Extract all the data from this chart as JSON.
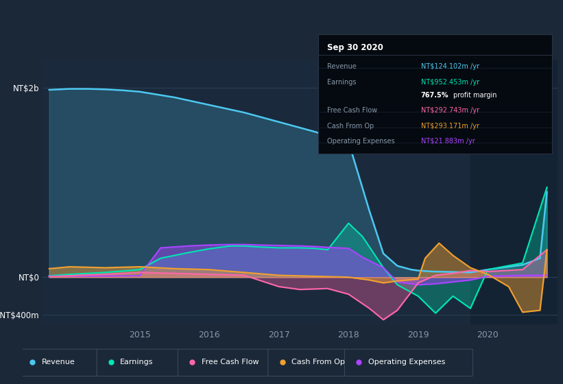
{
  "bg_color": "#1b2838",
  "plot_bg_color": "#1a2a3c",
  "grid_color": "#2a3f55",
  "text_color": "#8899aa",
  "ylim": [
    -500,
    2300
  ],
  "xlim": [
    2013.6,
    2021.0
  ],
  "ytick_labels": [
    "NT$2b",
    "NT$0",
    "-NT$400m"
  ],
  "ytick_vals": [
    2000,
    0,
    -400
  ],
  "xtick_vals": [
    2015,
    2016,
    2017,
    2018,
    2019,
    2020
  ],
  "legend_items": [
    {
      "label": "Revenue",
      "color": "#4dc8f0"
    },
    {
      "label": "Earnings",
      "color": "#00e5b4"
    },
    {
      "label": "Free Cash Flow",
      "color": "#ff66aa"
    },
    {
      "label": "Cash From Op",
      "color": "#f0a030"
    },
    {
      "label": "Operating Expenses",
      "color": "#aa44ff"
    }
  ],
  "rev_color": "#4dc8f0",
  "earn_color": "#00e5b4",
  "fcf_color": "#ff66aa",
  "cash_color": "#f0a030",
  "opex_color": "#aa44ff",
  "revenue_x": [
    2013.7,
    2014.0,
    2014.25,
    2014.5,
    2014.75,
    2015.0,
    2015.5,
    2016.0,
    2016.5,
    2017.0,
    2017.5,
    2018.0,
    2018.3,
    2018.5,
    2018.7,
    2018.9,
    2019.0,
    2019.2,
    2019.5,
    2019.75,
    2020.0,
    2020.5,
    2020.75,
    2020.85
  ],
  "revenue_y": [
    1980,
    1990,
    1990,
    1985,
    1975,
    1960,
    1900,
    1820,
    1740,
    1640,
    1540,
    1430,
    700,
    250,
    120,
    80,
    70,
    60,
    55,
    50,
    80,
    130,
    200,
    900
  ],
  "earnings_x": [
    2013.7,
    2014.0,
    2014.5,
    2015.0,
    2015.3,
    2015.7,
    2016.0,
    2016.3,
    2016.5,
    2016.7,
    2017.0,
    2017.3,
    2017.5,
    2017.7,
    2018.0,
    2018.2,
    2018.5,
    2018.7,
    2019.0,
    2019.25,
    2019.5,
    2019.75,
    2020.0,
    2020.5,
    2020.85
  ],
  "earnings_y": [
    15,
    30,
    50,
    80,
    200,
    260,
    300,
    330,
    330,
    320,
    310,
    310,
    305,
    290,
    570,
    430,
    100,
    -80,
    -200,
    -380,
    -200,
    -330,
    80,
    150,
    950
  ],
  "opex_x": [
    2013.7,
    2014.0,
    2014.5,
    2015.0,
    2015.3,
    2015.7,
    2016.0,
    2016.3,
    2016.5,
    2016.7,
    2017.0,
    2017.3,
    2017.5,
    2017.7,
    2018.0,
    2018.2,
    2018.5,
    2018.7,
    2019.0,
    2019.25,
    2019.5,
    2019.75,
    2020.0,
    2020.5,
    2020.85
  ],
  "opex_y": [
    10,
    10,
    12,
    15,
    310,
    330,
    340,
    345,
    345,
    340,
    335,
    330,
    325,
    315,
    305,
    210,
    100,
    -50,
    -80,
    -70,
    -50,
    -30,
    10,
    20,
    20
  ],
  "fcf_x": [
    2013.7,
    2014.0,
    2014.5,
    2015.0,
    2015.5,
    2016.0,
    2016.5,
    2017.0,
    2017.3,
    2017.7,
    2018.0,
    2018.3,
    2018.5,
    2018.7,
    2019.0,
    2019.25,
    2019.5,
    2019.75,
    2020.0,
    2020.5,
    2020.85
  ],
  "fcf_y": [
    5,
    15,
    30,
    50,
    40,
    30,
    20,
    -100,
    -130,
    -120,
    -180,
    -330,
    -450,
    -350,
    -60,
    20,
    40,
    70,
    60,
    80,
    290
  ],
  "cash_x": [
    2013.7,
    2014.0,
    2014.5,
    2015.0,
    2015.5,
    2016.0,
    2016.5,
    2017.0,
    2017.5,
    2018.0,
    2018.3,
    2018.5,
    2018.7,
    2019.0,
    2019.1,
    2019.3,
    2019.5,
    2019.75,
    2020.0,
    2020.3,
    2020.5,
    2020.75,
    2020.85
  ],
  "cash_y": [
    90,
    110,
    100,
    110,
    90,
    80,
    50,
    20,
    10,
    0,
    -30,
    -60,
    -40,
    -20,
    200,
    360,
    230,
    100,
    30,
    -100,
    -370,
    -350,
    290
  ]
}
